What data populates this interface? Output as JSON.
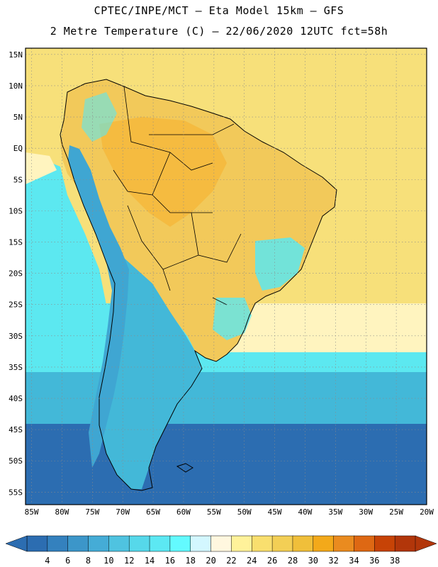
{
  "header": {
    "line1": "CPTEC/INPE/MCT –  Eta Model 15km – GFS",
    "line2": "2 Metre Temperature (C) – 22/06/2020 12UTC fct=58h"
  },
  "map": {
    "lat_range": [
      -57,
      16
    ],
    "lon_range": [
      -86,
      -20
    ],
    "lat_ticks": [
      "15N",
      "10N",
      "5N",
      "EQ",
      "5S",
      "10S",
      "15S",
      "20S",
      "25S",
      "30S",
      "35S",
      "40S",
      "45S",
      "50S",
      "55S"
    ],
    "lon_ticks": [
      "85W",
      "80W",
      "75W",
      "70W",
      "65W",
      "60W",
      "55W",
      "50W",
      "45W",
      "40W",
      "35W",
      "30W",
      "25W",
      "20W"
    ],
    "field_colors": {
      "land_hot": "#f5b83a",
      "land_warm": "#f2c95a",
      "ocean_warm": "#f7e07a",
      "ocean_mild": "#fff4bf",
      "ocean_cool": "#5ce8f0",
      "ocean_cold": "#43b8d8",
      "ocean_coldest": "#2c6db1",
      "andes_cold": "#3fa6d2",
      "border_color": "#000000",
      "grid_color": "#8a8a8a"
    }
  },
  "colorbar": {
    "labels": [
      "4",
      "6",
      "8",
      "10",
      "12",
      "14",
      "16",
      "18",
      "20",
      "22",
      "24",
      "26",
      "28",
      "30",
      "32",
      "34",
      "36",
      "38"
    ],
    "colors": [
      "#2c6db1",
      "#3481be",
      "#3c96c9",
      "#45acd6",
      "#4fc3e0",
      "#56d8ea",
      "#5ce8f3",
      "#63faff",
      "#d3f7ff",
      "#fff7df",
      "#fff29a",
      "#f9df6e",
      "#f3cf55",
      "#f0bf3a",
      "#f3a91a",
      "#ea8b1f",
      "#de6813",
      "#c74306",
      "#b2360a"
    ]
  }
}
